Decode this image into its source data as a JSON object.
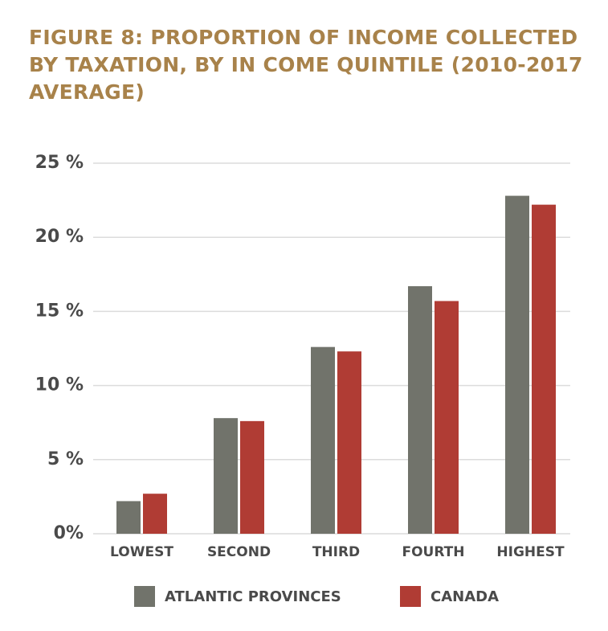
{
  "chart_data": {
    "type": "bar",
    "title": "FIGURE 8: PROPORTION OF INCOME COLLECTED BY TAXATION, BY IN COME QUINTILE (2010-2017 AVERAGE)",
    "categories": [
      "LOWEST",
      "SECOND",
      "THIRD",
      "FOURTH",
      "HIGHEST"
    ],
    "series": [
      {
        "name": "ATLANTIC PROVINCES",
        "color": "#71736b",
        "values": [
          2.2,
          7.8,
          12.6,
          16.7,
          22.8
        ]
      },
      {
        "name": "CANADA",
        "color": "#b03c34",
        "values": [
          2.7,
          7.6,
          12.3,
          15.7,
          22.2
        ]
      }
    ],
    "ylim": [
      0,
      25
    ],
    "yticks": [
      {
        "value": 0,
        "label": "0%"
      },
      {
        "value": 5,
        "label": "5 %"
      },
      {
        "value": 10,
        "label": "10 %"
      },
      {
        "value": 15,
        "label": "15 %"
      },
      {
        "value": 20,
        "label": "20 %"
      },
      {
        "value": 25,
        "label": "25 %"
      }
    ],
    "grid": true
  }
}
